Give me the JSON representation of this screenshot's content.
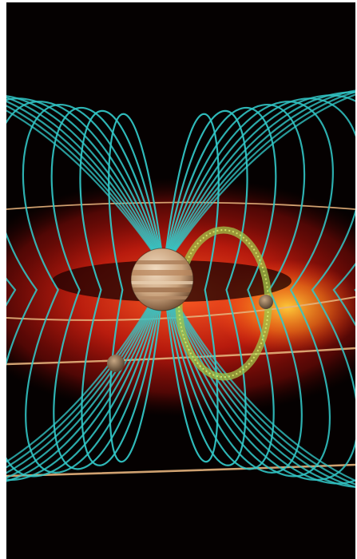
{
  "image": {
    "subject": "jupiter-magnetosphere-illustration",
    "colors": {
      "space": "#050101",
      "torus_red": "#c4140c",
      "torus_core": "#ff3a14",
      "torus_glow": "#ffb31a",
      "field_line": "#33c8c8",
      "orbit_ring": "#e5b27c",
      "flux_tube": "#9fc64a",
      "planet_light": "#e9cfb0",
      "planet_band": "#a97a55",
      "moon": "#8f7354",
      "frame": "#ffffff"
    },
    "elements": {
      "planet": "jupiter",
      "moons": [
        "io",
        "europa"
      ],
      "field_line_count": 22,
      "orbit_ring_count": 4
    }
  }
}
